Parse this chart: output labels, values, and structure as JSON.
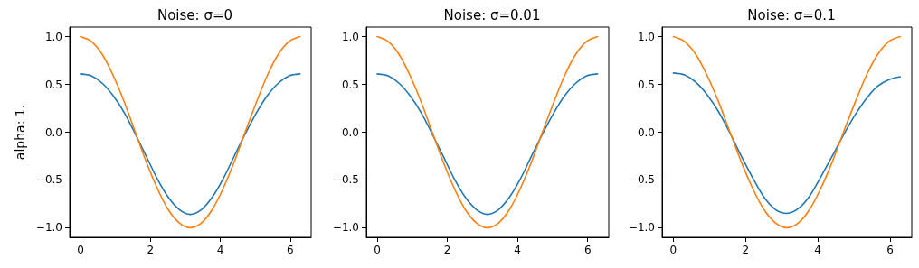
{
  "chart_data": [
    {
      "type": "line",
      "title": "Noise: σ=0",
      "ylabel": "alpha: 1.",
      "x": [
        0,
        0.31,
        0.63,
        0.94,
        1.26,
        1.57,
        1.88,
        2.2,
        2.51,
        2.83,
        3.14,
        3.46,
        3.77,
        4.08,
        4.4,
        4.71,
        5.03,
        5.34,
        5.65,
        5.97,
        6.28
      ],
      "series": [
        {
          "color": "#1f77b4",
          "values": [
            0.61,
            0.59,
            0.51,
            0.38,
            0.2,
            -0.02,
            -0.25,
            -0.49,
            -0.68,
            -0.81,
            -0.86,
            -0.81,
            -0.68,
            -0.49,
            -0.25,
            -0.02,
            0.2,
            0.38,
            0.51,
            0.59,
            0.61
          ]
        },
        {
          "color": "#ff7f0e",
          "values": [
            1,
            0.95,
            0.81,
            0.59,
            0.31,
            0,
            -0.31,
            -0.59,
            -0.81,
            -0.95,
            -1,
            -0.95,
            -0.81,
            -0.59,
            -0.31,
            0,
            0.31,
            0.59,
            0.81,
            0.95,
            1
          ]
        }
      ],
      "xlim": [
        -0.31,
        6.6
      ],
      "ylim": [
        -1.1,
        1.1
      ],
      "xticks": [
        0,
        2,
        4,
        6
      ],
      "yticks": [
        {
          "value": -1,
          "label": "−1.0"
        },
        {
          "value": -0.5,
          "label": "−0.5"
        },
        {
          "value": 0,
          "label": "0.0"
        },
        {
          "value": 0.5,
          "label": "0.5"
        },
        {
          "value": 1,
          "label": "1.0"
        }
      ],
      "grid": false,
      "marker": "none",
      "line_style": "solid"
    },
    {
      "type": "line",
      "title": "Noise: σ=0.01",
      "x": [
        0,
        0.31,
        0.63,
        0.94,
        1.26,
        1.57,
        1.88,
        2.2,
        2.51,
        2.83,
        3.14,
        3.46,
        3.77,
        4.08,
        4.4,
        4.71,
        5.03,
        5.34,
        5.65,
        5.97,
        6.28
      ],
      "series": [
        {
          "color": "#1f77b4",
          "values": [
            0.61,
            0.59,
            0.51,
            0.38,
            0.2,
            -0.02,
            -0.25,
            -0.49,
            -0.68,
            -0.81,
            -0.86,
            -0.81,
            -0.68,
            -0.49,
            -0.25,
            -0.02,
            0.2,
            0.38,
            0.51,
            0.59,
            0.61
          ]
        },
        {
          "color": "#ff7f0e",
          "values": [
            1,
            0.95,
            0.81,
            0.59,
            0.31,
            0,
            -0.31,
            -0.59,
            -0.81,
            -0.95,
            -1,
            -0.95,
            -0.81,
            -0.59,
            -0.31,
            0,
            0.31,
            0.59,
            0.81,
            0.95,
            1
          ]
        }
      ],
      "xlim": [
        -0.31,
        6.6
      ],
      "ylim": [
        -1.1,
        1.1
      ],
      "xticks": [
        0,
        2,
        4,
        6
      ],
      "yticks": [
        {
          "value": -1,
          "label": "−1.0"
        },
        {
          "value": -0.5,
          "label": "−0.5"
        },
        {
          "value": 0,
          "label": "0.0"
        },
        {
          "value": 0.5,
          "label": "0.5"
        },
        {
          "value": 1,
          "label": "1.0"
        }
      ],
      "grid": false,
      "marker": "none",
      "line_style": "solid"
    },
    {
      "type": "line",
      "title": "Noise: σ=0.1",
      "x": [
        0,
        0.31,
        0.63,
        0.94,
        1.26,
        1.57,
        1.88,
        2.2,
        2.51,
        2.83,
        3.14,
        3.46,
        3.77,
        4.08,
        4.4,
        4.71,
        5.03,
        5.34,
        5.65,
        5.97,
        6.28
      ],
      "series": [
        {
          "color": "#1f77b4",
          "values": [
            0.62,
            0.6,
            0.52,
            0.39,
            0.21,
            -0.01,
            -0.25,
            -0.48,
            -0.68,
            -0.81,
            -0.85,
            -0.8,
            -0.67,
            -0.47,
            -0.25,
            -0.03,
            0.18,
            0.35,
            0.48,
            0.55,
            0.58
          ]
        },
        {
          "color": "#ff7f0e",
          "values": [
            1,
            0.95,
            0.81,
            0.59,
            0.31,
            0,
            -0.31,
            -0.59,
            -0.81,
            -0.95,
            -1,
            -0.95,
            -0.81,
            -0.59,
            -0.31,
            0,
            0.31,
            0.59,
            0.81,
            0.95,
            1
          ]
        }
      ],
      "xlim": [
        -0.31,
        6.6
      ],
      "ylim": [
        -1.1,
        1.1
      ],
      "xticks": [
        0,
        2,
        4,
        6
      ],
      "yticks": [
        {
          "value": -1,
          "label": "−1.0"
        },
        {
          "value": -0.5,
          "label": "−0.5"
        },
        {
          "value": 0,
          "label": "0.0"
        },
        {
          "value": 0.5,
          "label": "0.5"
        },
        {
          "value": 1,
          "label": "1.0"
        }
      ],
      "grid": false,
      "marker": "none",
      "line_style": "solid"
    }
  ]
}
